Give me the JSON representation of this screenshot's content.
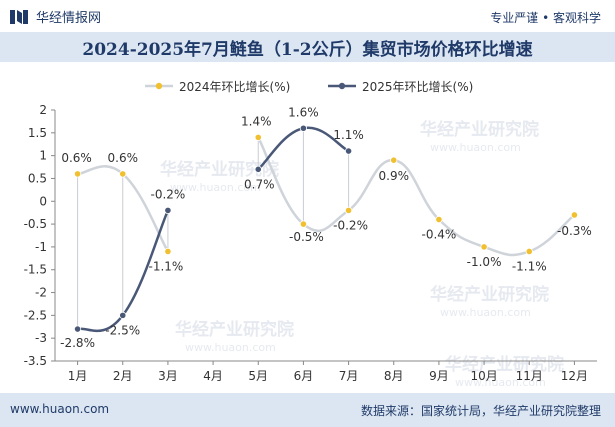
{
  "header": {
    "brand_name": "华经情报网",
    "tagline": "专业严谨 • 客观科学"
  },
  "title": "2024-2025年7月鲢鱼（1-2公斤）集贸市场价格环比增速",
  "footer": {
    "website": "www.huaon.com",
    "source": "数据来源：国家统计局，华经产业研究院整理"
  },
  "watermark": "华经产业研究院",
  "watermark_url": "www.huaon.com",
  "colors": {
    "series_2024": "#f0c030",
    "series_2024_line": "#cfd3da",
    "series_2025": "#4a5878",
    "brand": "#1f3a68"
  },
  "chart_data": {
    "type": "line",
    "categories": [
      "1月",
      "2月",
      "3月",
      "4月",
      "5月",
      "6月",
      "7月",
      "8月",
      "9月",
      "10月",
      "11月",
      "12月"
    ],
    "ylim": [
      -3.5,
      2
    ],
    "yticks": [
      "2",
      "1.5",
      "1",
      "0.5",
      "0",
      "-0.5",
      "-1",
      "-1.5",
      "-2",
      "-2.5",
      "-3",
      "-3.5"
    ],
    "smooth": true,
    "legend_position": "top",
    "grid": false,
    "series": [
      {
        "name": "2024年环比增长(%)",
        "values": [
          0.6,
          0.6,
          -1.1,
          null,
          1.4,
          -0.5,
          -0.2,
          0.9,
          -0.4,
          -1.0,
          -1.1,
          -0.3
        ],
        "labels": [
          "0.6%",
          "0.6%",
          "-1.1%",
          "",
          "1.4%",
          "-0.5%",
          "-0.2%",
          "0.9%",
          "-0.4%",
          "-1.0%",
          "-1.1%",
          "-0.3%"
        ]
      },
      {
        "name": "2025年环比增长(%)",
        "values": [
          -2.8,
          -2.5,
          -0.2,
          null,
          0.7,
          1.6,
          1.1,
          null,
          null,
          null,
          null,
          null
        ],
        "labels": [
          "-2.8%",
          "-2.5%",
          "-0.2%",
          "",
          "0.7%",
          "1.6%",
          "1.1%",
          "",
          "",
          "",
          "",
          ""
        ]
      }
    ]
  }
}
